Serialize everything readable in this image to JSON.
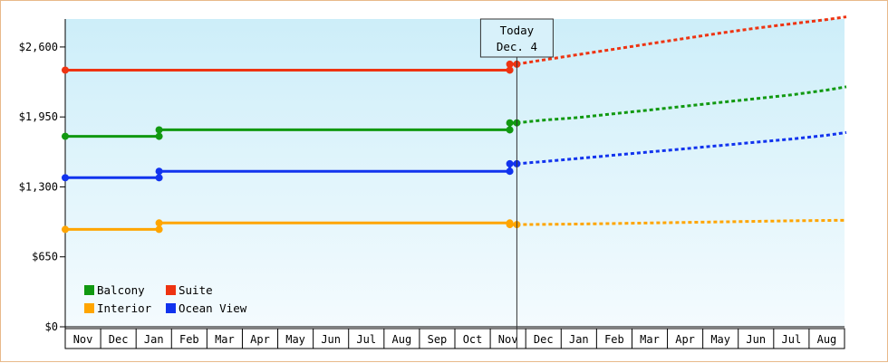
{
  "chart_data": {
    "type": "line",
    "title": "",
    "xlabel": "",
    "ylabel": "",
    "ylim": [
      0,
      2860
    ],
    "y_ticks": [
      "$0",
      "$650",
      "$1,300",
      "$1,950",
      "$2,600"
    ],
    "y_tick_values": [
      0,
      650,
      1300,
      1950,
      2600
    ],
    "month_labels": [
      "Nov",
      "Dec",
      "Jan",
      "Feb",
      "Mar",
      "Apr",
      "May",
      "Jun",
      "Jul",
      "Aug",
      "Sep",
      "Oct",
      "Nov",
      "Dec",
      "Jan",
      "Feb",
      "Mar",
      "Apr",
      "May",
      "Jun",
      "Jul",
      "Aug"
    ],
    "today_marker": {
      "line1": "Today",
      "line2": "Dec. 4",
      "month_index": 12.75
    },
    "background": {
      "top_color": "#cdeef9",
      "bottom_color": "#f4fbfe"
    },
    "legend_placement": "bottom-left",
    "series": [
      {
        "name": "Balcony",
        "color": "#119911",
        "history": [
          [
            0.0,
            1770
          ],
          [
            2.65,
            1770
          ],
          [
            2.65,
            1830
          ],
          [
            12.55,
            1830
          ],
          [
            12.55,
            1895
          ],
          [
            12.75,
            1895
          ]
        ],
        "forecast": [
          [
            12.75,
            1895
          ],
          [
            13.5,
            1920
          ],
          [
            14.5,
            1945
          ],
          [
            15.5,
            1980
          ],
          [
            16.5,
            2015
          ],
          [
            17.5,
            2050
          ],
          [
            18.5,
            2085
          ],
          [
            19.5,
            2120
          ],
          [
            20.5,
            2155
          ],
          [
            21.5,
            2200
          ],
          [
            22.05,
            2230
          ]
        ]
      },
      {
        "name": "Suite",
        "color": "#ee3311",
        "history": [
          [
            0.0,
            2385
          ],
          [
            12.55,
            2385
          ],
          [
            12.55,
            2440
          ],
          [
            12.75,
            2440
          ]
        ],
        "forecast": [
          [
            12.75,
            2440
          ],
          [
            13.5,
            2480
          ],
          [
            14.5,
            2530
          ],
          [
            15.5,
            2580
          ],
          [
            16.5,
            2630
          ],
          [
            17.5,
            2680
          ],
          [
            18.5,
            2730
          ],
          [
            19.5,
            2775
          ],
          [
            20.5,
            2815
          ],
          [
            21.5,
            2855
          ],
          [
            22.05,
            2880
          ]
        ]
      },
      {
        "name": "Interior",
        "color": "#ffa500",
        "history": [
          [
            0.0,
            905
          ],
          [
            2.65,
            905
          ],
          [
            2.65,
            965
          ],
          [
            12.55,
            965
          ],
          [
            12.55,
            950
          ],
          [
            12.75,
            950
          ]
        ],
        "forecast": [
          [
            12.75,
            950
          ],
          [
            14.5,
            955
          ],
          [
            16.5,
            965
          ],
          [
            18.5,
            975
          ],
          [
            20.5,
            985
          ],
          [
            22.05,
            990
          ]
        ]
      },
      {
        "name": "Ocean View",
        "color": "#1133ee",
        "history": [
          [
            0.0,
            1385
          ],
          [
            2.65,
            1385
          ],
          [
            2.65,
            1445
          ],
          [
            12.55,
            1445
          ],
          [
            12.55,
            1515
          ],
          [
            12.75,
            1515
          ]
        ],
        "forecast": [
          [
            12.75,
            1515
          ],
          [
            13.5,
            1535
          ],
          [
            14.5,
            1565
          ],
          [
            15.5,
            1595
          ],
          [
            16.5,
            1625
          ],
          [
            17.5,
            1655
          ],
          [
            18.5,
            1685
          ],
          [
            19.5,
            1715
          ],
          [
            20.5,
            1745
          ],
          [
            21.5,
            1780
          ],
          [
            22.05,
            1805
          ]
        ]
      }
    ]
  }
}
